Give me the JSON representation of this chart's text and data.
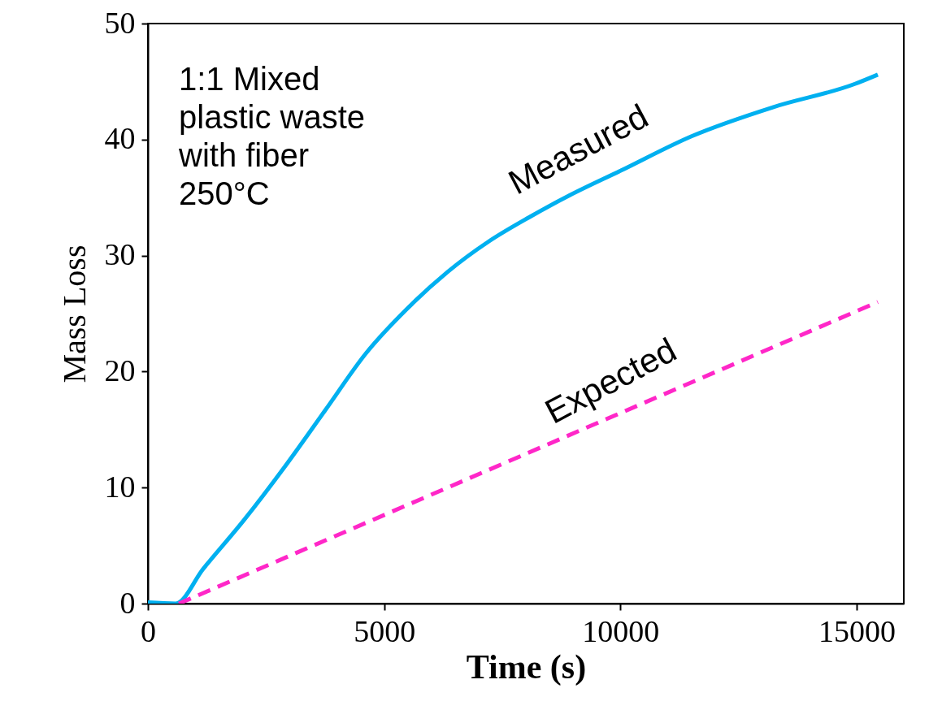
{
  "chart_data": {
    "type": "line",
    "xlabel": "Time (s)",
    "ylabel": "Mass Loss",
    "xlim": [
      0,
      16000
    ],
    "ylim": [
      0,
      50
    ],
    "xticks": [
      0,
      5000,
      10000,
      15000
    ],
    "yticks": [
      0,
      10,
      20,
      30,
      40,
      50
    ],
    "grid": false,
    "legend": false,
    "annotations": [
      "1:1 Mixed\nplastic waste\nwith fiber\n250°C"
    ],
    "series": [
      {
        "name": "Measured",
        "color": "#00b0f0",
        "line_style": "solid",
        "x": [
          0,
          586,
          1172,
          2034,
          2897,
          3759,
          4621,
          5483,
          6345,
          7207,
          8069,
          8931,
          10000,
          11517,
          13241,
          14966,
          15450
        ],
        "values": [
          0.1,
          0,
          3.0,
          7.2,
          11.8,
          16.7,
          21.6,
          25.4,
          28.6,
          31.2,
          33.3,
          35.2,
          37.3,
          40.3,
          42.8,
          44.8,
          45.6
        ]
      },
      {
        "name": "Expected",
        "color": "#ff27c8",
        "line_style": "dashed",
        "x": [
          655,
          15450
        ],
        "values": [
          0,
          26
        ]
      }
    ]
  }
}
